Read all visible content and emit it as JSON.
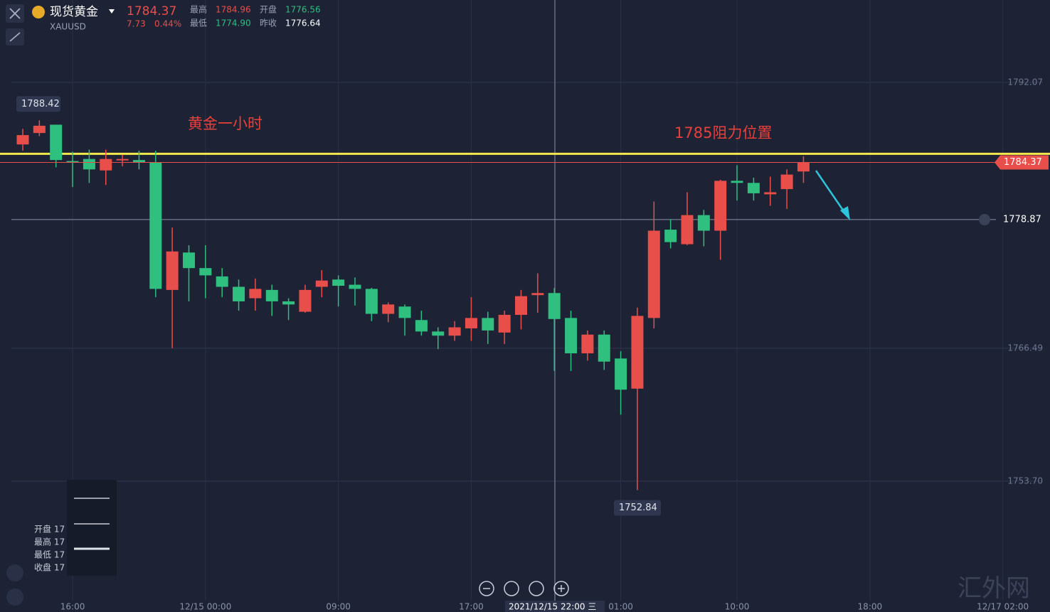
{
  "chart_data": {
    "type": "candlestick",
    "symbol_name": "现货黄金",
    "symbol_code": "XAUUSD",
    "last": "1784.37",
    "change": "7.73",
    "change_pct": "0.44%",
    "stats": [
      {
        "label": "最高",
        "value": "1784.96",
        "color": "#e84f4a"
      },
      {
        "label": "开盘",
        "value": "1776.56",
        "color": "#2fbf7f"
      },
      {
        "label": "最低",
        "value": "1774.90",
        "color": "#2fbf7f"
      },
      {
        "label": "昨收",
        "value": "1776.64",
        "color": "#ffffff"
      }
    ],
    "title": "黄金一小时",
    "resistance": {
      "value": 1785.2,
      "label": "1785阻力位置",
      "color": "#f2e84b"
    },
    "crosshair": {
      "x_label": "2021/12/15 22:00 三",
      "price": 1778.87
    },
    "watermark": "汇外网",
    "legend_texts": [
      "开盘 17",
      "最高 17",
      "最低 17",
      "收盘 17"
    ],
    "up_color": "#e84f4a",
    "down_color": "#2fbf7f",
    "categories": [
      null,
      null,
      null,
      "16:00",
      null,
      null,
      null,
      null,
      null,
      null,
      null,
      "12/15 00:00",
      null,
      null,
      null,
      null,
      null,
      null,
      null,
      "09:00",
      null,
      null,
      null,
      null,
      null,
      null,
      null,
      "17:00",
      null,
      null,
      null,
      null,
      null,
      null,
      null,
      null,
      "01:00",
      null,
      null,
      null,
      null,
      null,
      null,
      "10:00",
      null,
      null,
      null,
      null,
      null,
      null,
      null,
      "18:00",
      null,
      null,
      null,
      null,
      null,
      null,
      null,
      "12/17 02:00"
    ],
    "open": [
      1786.1,
      1787.2,
      1788.0,
      1784.5,
      1784.7,
      1783.6,
      1784.6,
      1784.6,
      1784.4,
      1772.1,
      1775.7,
      1774.2,
      1773.4,
      1772.4,
      1771.3,
      1772.1,
      1771.0,
      1770.0,
      1772.4,
      1773.1,
      1772.6,
      1772.2,
      1769.8,
      1770.5,
      1769.2,
      1768.1,
      1767.7,
      1768.4,
      1769.4,
      1768.0,
      1769.7,
      1771.6,
      1771.8,
      1769.4,
      1766.0,
      1767.8,
      1765.5,
      1762.6,
      1769.4,
      1777.9,
      1776.5,
      1779.3,
      1777.8,
      1782.6,
      1782.4,
      1781.3,
      1781.8,
      1783.5,
      null,
      null,
      null,
      null,
      null,
      null,
      null,
      null,
      null,
      null,
      null,
      null
    ],
    "high": [
      1787.6,
      1788.42,
      1788.0,
      1785.4,
      1785.6,
      1785.6,
      1785.1,
      1785.5,
      1785.5,
      1778.1,
      1776.4,
      1776.4,
      1774.2,
      1773.1,
      1773.2,
      1772.6,
      1771.3,
      1772.6,
      1774.0,
      1773.5,
      1773.3,
      1772.3,
      1770.9,
      1770.7,
      1770.1,
      1768.5,
      1769.1,
      1771.4,
      1770.0,
      1770.1,
      1772.1,
      1773.7,
      1772.3,
      1770.1,
      1768.2,
      1768.2,
      1766.2,
      1770.4,
      1780.6,
      1778.9,
      1781.5,
      1779.8,
      1782.7,
      1784.1,
      1782.9,
      1783.0,
      1783.7,
      1784.96,
      null,
      null,
      null,
      null,
      null,
      null,
      null,
      null,
      null,
      null,
      null,
      null
    ],
    "low": [
      1785.5,
      1786.9,
      1783.9,
      1782.0,
      1782.4,
      1782.2,
      1784.0,
      1783.7,
      1771.4,
      1766.5,
      1771.0,
      1771.3,
      1771.4,
      1770.1,
      1770.1,
      1769.6,
      1769.2,
      1769.9,
      1771.4,
      1770.5,
      1770.6,
      1769.1,
      1769.0,
      1767.7,
      1767.7,
      1766.4,
      1767.2,
      1767.2,
      1766.9,
      1766.9,
      1768.3,
      1769.9,
      1764.3,
      1764.3,
      1765.3,
      1764.4,
      1760.1,
      1752.84,
      1768.4,
      1776.1,
      1776.4,
      1776.3,
      1775.0,
      1780.7,
      1780.7,
      1780.2,
      1779.9,
      1782.4,
      null,
      null,
      null,
      null,
      null,
      null,
      null,
      null,
      null,
      null,
      null,
      null
    ],
    "close": [
      1787.0,
      1787.9,
      1784.6,
      1784.4,
      1783.7,
      1784.7,
      1784.7,
      1784.4,
      1772.2,
      1775.8,
      1774.2,
      1773.5,
      1772.4,
      1771.0,
      1772.2,
      1771.0,
      1770.7,
      1772.1,
      1773.0,
      1772.5,
      1772.2,
      1769.8,
      1770.7,
      1769.4,
      1768.1,
      1767.7,
      1768.5,
      1769.4,
      1768.2,
      1769.7,
      1771.5,
      1771.8,
      1769.3,
      1766.0,
      1767.8,
      1765.2,
      1762.5,
      1769.6,
      1777.8,
      1776.7,
      1779.3,
      1777.8,
      1782.6,
      1782.4,
      1781.4,
      1781.5,
      1783.2,
      1784.37,
      null,
      null,
      null,
      null,
      null,
      null,
      null,
      null,
      null,
      null,
      null,
      null
    ],
    "ylim": [
      1742.2,
      1800.0
    ],
    "yticks": [
      1792.07,
      1766.49,
      {
        "value": 1753.7,
        "label": "1753.70"
      }
    ],
    "grid": true
  }
}
